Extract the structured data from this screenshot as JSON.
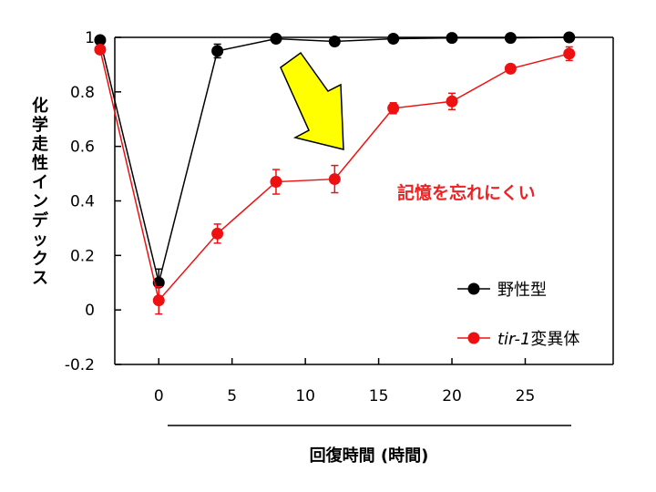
{
  "chart_data": {
    "type": "line",
    "title": "",
    "xlabel": "回復時間 (時間)",
    "ylabel": "化学走性インデックス",
    "xlim": [
      -3,
      31
    ],
    "ylim": [
      -0.2,
      1
    ],
    "x_ticks": [
      "0",
      "5",
      "10",
      "15",
      "20",
      "25"
    ],
    "x_tick_values": [
      0,
      5,
      10,
      15,
      20,
      25
    ],
    "y_ticks": [
      "-0.2",
      "0",
      "0.2",
      "0.4",
      "0.6",
      "0.8",
      "1"
    ],
    "y_tick_values": [
      -0.2,
      0,
      0.2,
      0.4,
      0.6,
      0.8,
      1
    ],
    "legend_position": "bottom-right",
    "series": [
      {
        "name": "野性型",
        "color": "#000000",
        "x": [
          -4,
          0,
          4,
          8,
          12,
          16,
          20,
          24,
          28
        ],
        "values": [
          0.99,
          0.1,
          0.95,
          0.995,
          0.985,
          0.995,
          0.998,
          0.998,
          1.0
        ],
        "errors": [
          0.01,
          0.05,
          0.025,
          0.01,
          0.01,
          0.01,
          0.005,
          0.005,
          0.005
        ]
      },
      {
        "name_italic": "tir-1",
        "name_suffix": "変異体",
        "color": "#ee1111",
        "x": [
          -4,
          0,
          4,
          8,
          12,
          16,
          20,
          24,
          28
        ],
        "values": [
          0.955,
          0.035,
          0.28,
          0.47,
          0.48,
          0.74,
          0.765,
          0.885,
          0.94
        ],
        "errors": [
          0.015,
          0.05,
          0.035,
          0.045,
          0.05,
          0.02,
          0.03,
          0.015,
          0.025
        ]
      }
    ],
    "annotation": {
      "text": "記憶を忘れにくい",
      "color": "#ee2222",
      "arrow_color": "#ffff00"
    }
  }
}
